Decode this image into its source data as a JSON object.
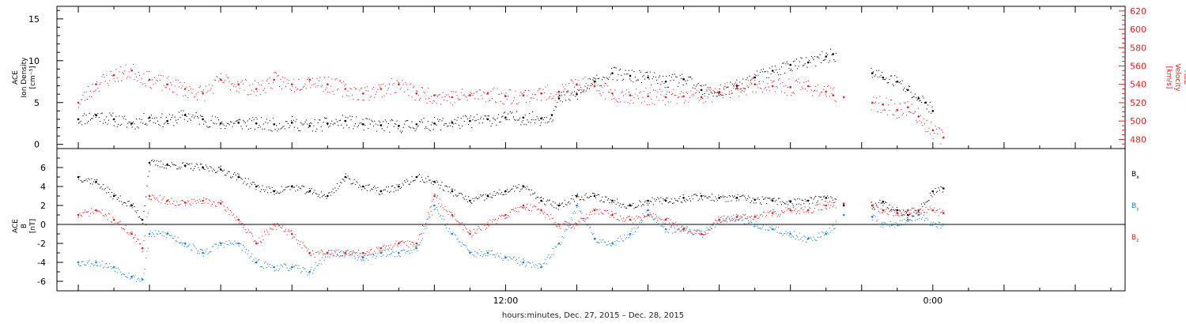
{
  "footer_label": "hours:minutes, Dec. 27, 2015 – Dec. 28, 2015",
  "x_tick_labels": [
    {
      "t": 12,
      "label": "12:00"
    },
    {
      "t": 24,
      "label": "0:00"
    }
  ],
  "colors": {
    "black": "#000000",
    "red": "#e8201f",
    "blue": "#1f7fd8"
  },
  "chart_data": [
    {
      "type": "scatter",
      "x_unit": "hours since Dec. 27, 2015 00:00",
      "xlim": [
        -0.6,
        29.4
      ],
      "left_axis": {
        "label_lines": [
          "ACE",
          "Ion Density"
        ],
        "unit": "[cm⁻³]",
        "ylim": [
          -0.5,
          16.5
        ],
        "ticks": [
          0,
          5,
          10,
          15
        ]
      },
      "right_axis": {
        "label_lines": [
          "ACE",
          "Velocity"
        ],
        "unit": "[km/s]",
        "ylim": [
          470,
          625
        ],
        "ticks": [
          480,
          500,
          520,
          540,
          560,
          580,
          600,
          620
        ]
      },
      "series": [
        {
          "name": "Ion Density",
          "color": "black",
          "axis": "left",
          "points": [
            [
              0,
              3
            ],
            [
              0.5,
              3.5
            ],
            [
              1,
              3
            ],
            [
              1.5,
              2.5
            ],
            [
              2,
              3.2
            ],
            [
              2.5,
              2.8
            ],
            [
              3,
              3.5
            ],
            [
              3.5,
              3
            ],
            [
              4,
              2.5
            ],
            [
              4.5,
              2.6
            ],
            [
              5,
              2.5
            ],
            [
              5.5,
              2.4
            ],
            [
              6,
              2.6
            ],
            [
              6.5,
              2.2
            ],
            [
              7,
              2.5
            ],
            [
              7.5,
              2.8
            ],
            [
              8,
              2.4
            ],
            [
              8.5,
              2.3
            ],
            [
              9,
              2.2
            ],
            [
              9.5,
              2.4
            ],
            [
              10,
              2.5
            ],
            [
              10.5,
              2.6
            ],
            [
              11,
              2.8
            ],
            [
              11.5,
              3
            ],
            [
              12,
              3.2
            ],
            [
              12.5,
              3.2
            ],
            [
              13,
              3.1
            ],
            [
              13.3,
              3.5
            ],
            [
              13.5,
              5.5
            ],
            [
              14,
              6
            ],
            [
              14.5,
              7.5
            ],
            [
              15,
              8.5
            ],
            [
              15.5,
              8.2
            ],
            [
              16,
              8
            ],
            [
              16.5,
              7.5
            ],
            [
              17,
              7.8
            ],
            [
              17.5,
              6.5
            ],
            [
              18,
              6.2
            ],
            [
              18.5,
              7
            ],
            [
              19,
              8
            ],
            [
              19.5,
              8.8
            ],
            [
              20,
              9.5
            ],
            [
              20.5,
              9.8
            ],
            [
              21,
              10.5
            ],
            [
              21.2,
              10.8
            ],
            [
              22.3,
              8.5
            ],
            [
              22.6,
              8
            ],
            [
              23,
              7.5
            ],
            [
              23.3,
              6.5
            ],
            [
              23.6,
              5.5
            ],
            [
              23.8,
              5
            ],
            [
              24,
              4
            ]
          ]
        },
        {
          "name": "Velocity",
          "color": "red",
          "axis": "right",
          "points": [
            [
              0,
              520
            ],
            [
              0.5,
              540
            ],
            [
              1,
              550
            ],
            [
              1.5,
              555
            ],
            [
              2,
              545
            ],
            [
              2.5,
              540
            ],
            [
              3,
              535
            ],
            [
              3.5,
              530
            ],
            [
              4,
              545
            ],
            [
              4.5,
              540
            ],
            [
              5,
              535
            ],
            [
              5.5,
              545
            ],
            [
              6,
              540
            ],
            [
              6.5,
              545
            ],
            [
              7,
              540
            ],
            [
              7.5,
              535
            ],
            [
              8,
              530
            ],
            [
              8.5,
              535
            ],
            [
              9,
              540
            ],
            [
              9.5,
              530
            ],
            [
              10,
              528
            ],
            [
              10.5,
              526
            ],
            [
              11,
              528
            ],
            [
              11.5,
              530
            ],
            [
              12,
              527
            ],
            [
              12.5,
              528
            ],
            [
              13,
              530
            ],
            [
              13.5,
              532
            ],
            [
              14,
              540
            ],
            [
              14.5,
              538
            ],
            [
              15,
              530
            ],
            [
              15.5,
              528
            ],
            [
              16,
              527
            ],
            [
              16.5,
              526
            ],
            [
              17,
              527
            ],
            [
              17.5,
              526
            ],
            [
              18,
              532
            ],
            [
              18.5,
              536
            ],
            [
              19,
              540
            ],
            [
              19.5,
              538
            ],
            [
              20,
              537
            ],
            [
              20.5,
              538
            ],
            [
              21,
              532
            ],
            [
              21.2,
              528
            ],
            [
              21.5,
              526
            ],
            [
              22.3,
              520
            ],
            [
              22.6,
              518
            ],
            [
              23,
              512
            ],
            [
              23.3,
              515
            ],
            [
              23.6,
              505
            ],
            [
              24,
              490
            ],
            [
              24.3,
              482
            ]
          ]
        }
      ]
    },
    {
      "type": "scatter",
      "x_unit": "hours since Dec. 27, 2015 00:00",
      "xlim": [
        -0.6,
        29.4
      ],
      "y_axis": {
        "label_lines": [
          "ACE",
          "B"
        ],
        "unit": "[nT]",
        "ylim": [
          -7,
          8
        ],
        "ticks": [
          -6,
          -4,
          -2,
          0,
          2,
          4,
          6
        ],
        "zero_line": true
      },
      "legend": [
        {
          "base": "B",
          "sub": "x",
          "color": "black"
        },
        {
          "base": "B",
          "sub": "y",
          "color": "blue"
        },
        {
          "base": "B",
          "sub": "z",
          "color": "red"
        }
      ],
      "series": [
        {
          "name": "Bx",
          "color": "black",
          "points": [
            [
              0,
              5
            ],
            [
              0.5,
              4.5
            ],
            [
              1,
              3
            ],
            [
              1.5,
              2
            ],
            [
              1.8,
              0.5
            ],
            [
              2,
              6.5
            ],
            [
              2.5,
              6.3
            ],
            [
              3,
              6.2
            ],
            [
              3.5,
              6
            ],
            [
              4,
              5.8
            ],
            [
              4.5,
              5
            ],
            [
              5,
              4
            ],
            [
              5.5,
              3.5
            ],
            [
              6,
              4
            ],
            [
              6.5,
              3.5
            ],
            [
              7,
              3
            ],
            [
              7.5,
              5
            ],
            [
              8,
              4
            ],
            [
              8.5,
              3.5
            ],
            [
              9,
              4
            ],
            [
              9.5,
              5
            ],
            [
              10,
              4.5
            ],
            [
              10.5,
              3.5
            ],
            [
              11,
              2.5
            ],
            [
              11.5,
              3
            ],
            [
              12,
              3.5
            ],
            [
              12.5,
              4
            ],
            [
              13,
              2.5
            ],
            [
              13.5,
              2
            ],
            [
              14,
              3
            ],
            [
              14.5,
              3
            ],
            [
              15,
              2.5
            ],
            [
              15.5,
              2
            ],
            [
              16,
              2.5
            ],
            [
              16.5,
              2.5
            ],
            [
              17,
              2.8
            ],
            [
              17.5,
              3
            ],
            [
              18,
              2.8
            ],
            [
              18.5,
              2.8
            ],
            [
              19,
              2.6
            ],
            [
              19.5,
              2.5
            ],
            [
              20,
              2.4
            ],
            [
              20.5,
              2.5
            ],
            [
              21,
              2.8
            ],
            [
              21.5,
              2
            ],
            [
              22.3,
              2
            ],
            [
              22.6,
              2.4
            ],
            [
              23,
              1.5
            ],
            [
              23.3,
              1
            ],
            [
              23.6,
              1.5
            ],
            [
              24,
              3.5
            ],
            [
              24.3,
              3.8
            ]
          ]
        },
        {
          "name": "By",
          "color": "blue",
          "points": [
            [
              0,
              -4
            ],
            [
              0.5,
              -4
            ],
            [
              1,
              -4.5
            ],
            [
              1.5,
              -5.5
            ],
            [
              1.8,
              -5.8
            ],
            [
              2,
              -1
            ],
            [
              2.5,
              -1
            ],
            [
              3,
              -2
            ],
            [
              3.5,
              -3
            ],
            [
              4,
              -2
            ],
            [
              4.5,
              -2
            ],
            [
              5,
              -4
            ],
            [
              5.5,
              -4.5
            ],
            [
              6,
              -4.5
            ],
            [
              6.5,
              -5
            ],
            [
              7,
              -3
            ],
            [
              7.5,
              -3
            ],
            [
              8,
              -3.5
            ],
            [
              8.5,
              -3
            ],
            [
              9,
              -3
            ],
            [
              9.5,
              -2.5
            ],
            [
              10,
              2
            ],
            [
              10.5,
              -1
            ],
            [
              11,
              -3
            ],
            [
              11.5,
              -3
            ],
            [
              12,
              -3.5
            ],
            [
              12.5,
              -4
            ],
            [
              13,
              -4.5
            ],
            [
              13.5,
              -2
            ],
            [
              14,
              2
            ],
            [
              14.5,
              -1.5
            ],
            [
              15,
              -2
            ],
            [
              15.5,
              -1
            ],
            [
              16,
              1.5
            ],
            [
              16.5,
              -0.5
            ],
            [
              17,
              -0.5
            ],
            [
              17.5,
              -1
            ],
            [
              18,
              0.5
            ],
            [
              18.5,
              0.8
            ],
            [
              19,
              0
            ],
            [
              19.5,
              -0.5
            ],
            [
              20,
              -1
            ],
            [
              20.5,
              -1.5
            ],
            [
              21,
              -1
            ],
            [
              21.5,
              1
            ],
            [
              22.3,
              0.8
            ],
            [
              22.6,
              0
            ],
            [
              23,
              0
            ],
            [
              23.3,
              0.5
            ],
            [
              23.6,
              1
            ],
            [
              24,
              0
            ],
            [
              24.3,
              0
            ]
          ]
        },
        {
          "name": "Bz",
          "color": "red",
          "points": [
            [
              0,
              1
            ],
            [
              0.5,
              1.5
            ],
            [
              1,
              0.5
            ],
            [
              1.5,
              -1
            ],
            [
              1.8,
              -2.5
            ],
            [
              2,
              3
            ],
            [
              2.5,
              2.5
            ],
            [
              3,
              2.3
            ],
            [
              3.5,
              2.5
            ],
            [
              4,
              2.2
            ],
            [
              4.5,
              0.5
            ],
            [
              5,
              -2
            ],
            [
              5.5,
              0
            ],
            [
              6,
              -1
            ],
            [
              6.5,
              -3
            ],
            [
              7,
              -3
            ],
            [
              7.5,
              -3
            ],
            [
              8,
              -3
            ],
            [
              8.5,
              -2.5
            ],
            [
              9,
              -2
            ],
            [
              9.5,
              -2
            ],
            [
              10,
              3
            ],
            [
              10.5,
              1
            ],
            [
              11,
              -1
            ],
            [
              11.5,
              0
            ],
            [
              12,
              1
            ],
            [
              12.5,
              2
            ],
            [
              13,
              1.5
            ],
            [
              13.5,
              0
            ],
            [
              14,
              0
            ],
            [
              14.5,
              1.5
            ],
            [
              15,
              1
            ],
            [
              15.5,
              0.5
            ],
            [
              16,
              1
            ],
            [
              16.5,
              0.5
            ],
            [
              17,
              -0.5
            ],
            [
              17.5,
              -1
            ],
            [
              18,
              0.5
            ],
            [
              18.5,
              0.8
            ],
            [
              19,
              0.8
            ],
            [
              19.5,
              1.2
            ],
            [
              20,
              1.5
            ],
            [
              20.5,
              1.5
            ],
            [
              21,
              2
            ],
            [
              21.5,
              2.2
            ],
            [
              22.3,
              2
            ],
            [
              22.6,
              1.5
            ],
            [
              23,
              1.2
            ],
            [
              23.3,
              1.5
            ],
            [
              23.6,
              1.5
            ],
            [
              24,
              1.5
            ],
            [
              24.3,
              1.2
            ]
          ]
        }
      ]
    }
  ]
}
